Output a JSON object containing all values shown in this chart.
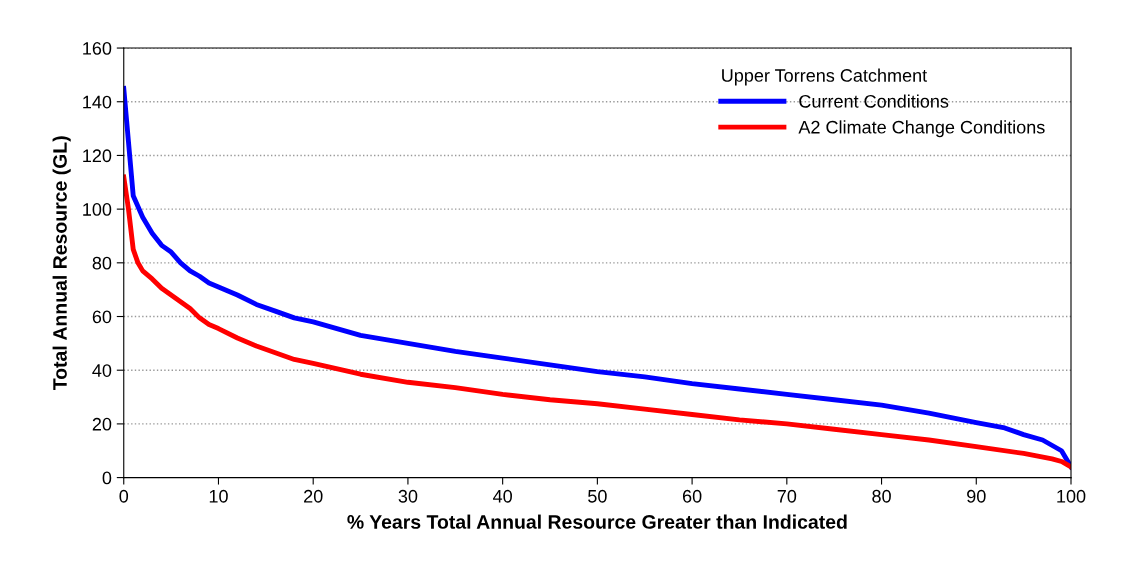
{
  "chart_data": {
    "type": "line",
    "xlabel": "% Years Total Annual Resource Greater than Indicated",
    "ylabel": "Total Annual Resource (GL)",
    "legend_title": "Upper Torrens Catchment",
    "legend": "top right",
    "grid": "y",
    "marker": "none",
    "line_style": "solid",
    "xlim": [
      0,
      100
    ],
    "xticks": [
      0,
      10,
      20,
      30,
      40,
      50,
      60,
      70,
      80,
      90,
      100
    ],
    "ylim": [
      0,
      160
    ],
    "yticks": [
      0,
      20,
      40,
      60,
      80,
      100,
      120,
      140,
      160
    ],
    "series": [
      {
        "name": "Current Conditions",
        "color": "#0000ff",
        "x": [
          0,
          0.5,
          1,
          2,
          3,
          4,
          5,
          6,
          7,
          8,
          9,
          10,
          12,
          14,
          16,
          18,
          20,
          25,
          30,
          35,
          40,
          45,
          50,
          55,
          60,
          65,
          70,
          75,
          80,
          85,
          90,
          93,
          95,
          97,
          99,
          100
        ],
        "values": [
          145,
          125,
          105,
          97,
          91,
          86.5,
          84,
          80,
          77,
          75,
          72.5,
          71,
          68,
          64.5,
          62,
          59.5,
          58,
          53,
          50,
          47,
          44.5,
          42,
          39.5,
          37.5,
          35,
          33,
          31,
          29,
          27,
          24,
          20.5,
          18.5,
          16,
          14,
          10,
          4
        ]
      },
      {
        "name": "A2 Climate Change Conditions",
        "color": "#ff0000",
        "x": [
          0,
          0.5,
          1,
          1.5,
          2,
          3,
          4,
          5,
          6,
          7,
          8,
          9,
          10,
          12,
          14,
          16,
          18,
          20,
          25,
          30,
          35,
          40,
          45,
          50,
          55,
          60,
          65,
          70,
          75,
          80,
          85,
          90,
          95,
          98,
          99,
          100
        ],
        "values": [
          112,
          100,
          85,
          80,
          77,
          74,
          70.5,
          68,
          65.5,
          63,
          59.5,
          57,
          55.5,
          52,
          49,
          46.5,
          44,
          42.5,
          38.5,
          35.5,
          33.5,
          31,
          29,
          27.5,
          25.5,
          23.5,
          21.5,
          20,
          18,
          16,
          14,
          11.5,
          9,
          7,
          6,
          4
        ]
      }
    ]
  }
}
